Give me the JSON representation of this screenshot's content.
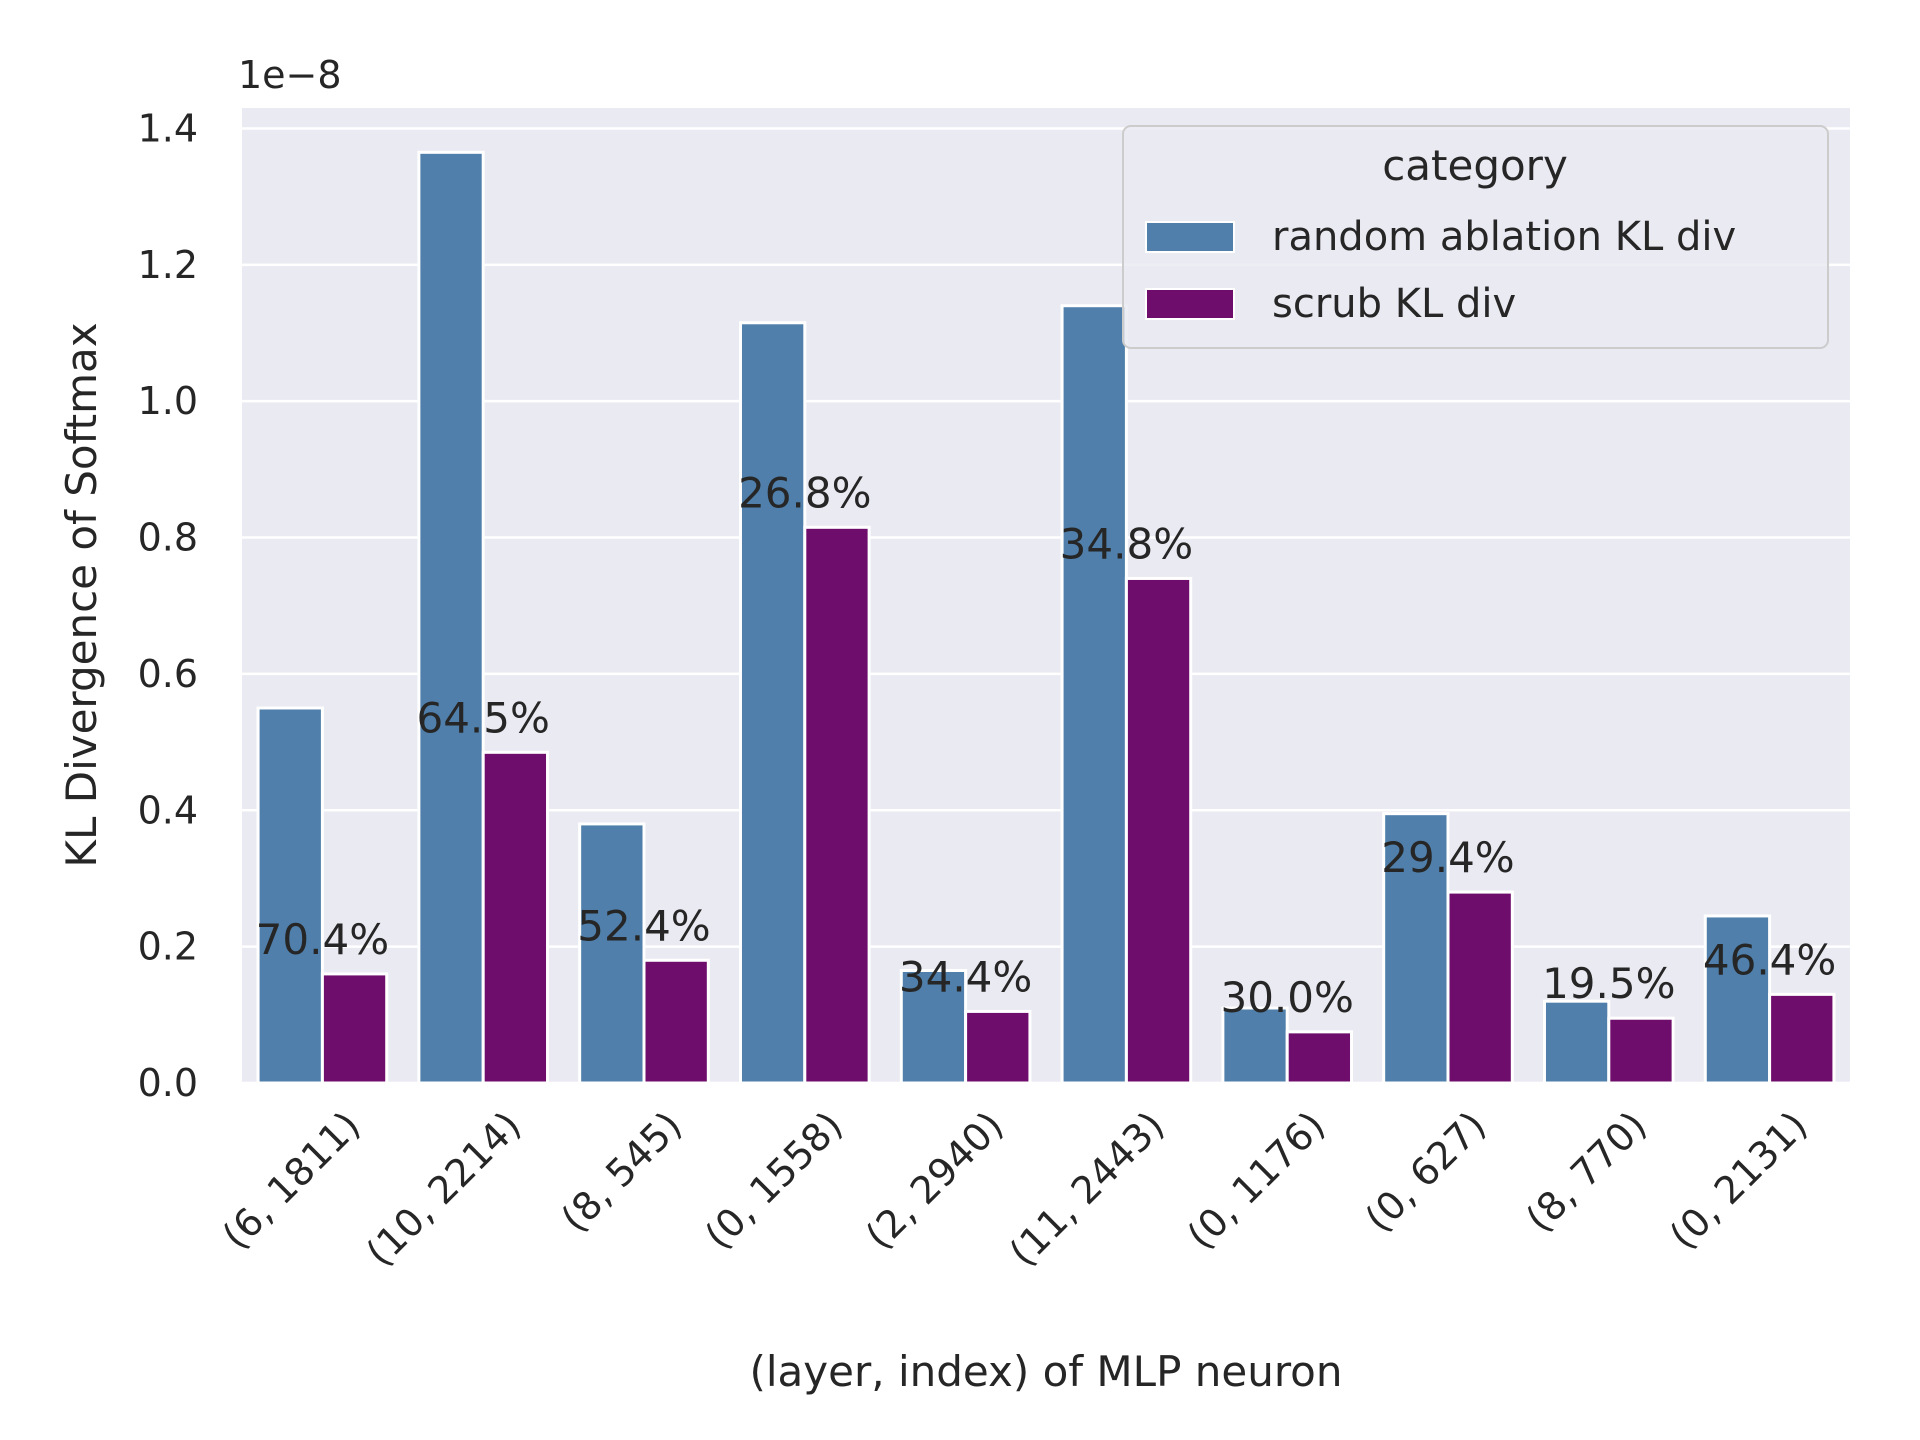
{
  "chart_data": {
    "type": "bar",
    "title": "",
    "xlabel": "(layer, index) of MLP neuron",
    "ylabel": "KL Divergence of Softmax",
    "y_offset_text": "1e−8",
    "ylim": [
      0,
      1.43
    ],
    "yticks": [
      "0.0",
      "0.2",
      "0.4",
      "0.6",
      "0.8",
      "1.0",
      "1.2",
      "1.4"
    ],
    "grid": true,
    "legend": {
      "title": "category",
      "placement": "top-right"
    },
    "categories": [
      "(6, 1811)",
      "(10, 2214)",
      "(8, 545)",
      "(0, 1558)",
      "(2, 2940)",
      "(11, 2443)",
      "(0, 1176)",
      "(0, 627)",
      "(8, 770)",
      "(0, 2131)"
    ],
    "series": [
      {
        "name": "random ablation KL div",
        "color": "#4f7faa",
        "values": [
          0.55,
          1.365,
          0.38,
          1.115,
          0.165,
          1.14,
          0.11,
          0.395,
          0.12,
          0.245
        ]
      },
      {
        "name": "scrub KL div",
        "color": "#6e0d6b",
        "values": [
          0.16,
          0.485,
          0.18,
          0.815,
          0.105,
          0.74,
          0.075,
          0.28,
          0.095,
          0.13
        ]
      }
    ],
    "annotations": [
      "70.4%",
      "64.5%",
      "52.4%",
      "26.8%",
      "34.4%",
      "34.8%",
      "30.0%",
      "29.4%",
      "19.5%",
      "46.4%"
    ],
    "background": "#eaeaf2"
  }
}
